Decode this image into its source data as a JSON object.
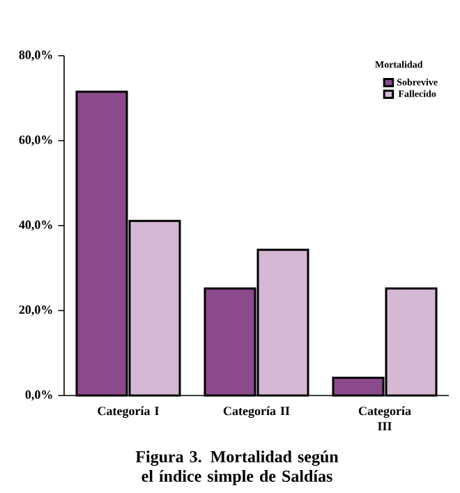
{
  "chart_data": {
    "type": "bar",
    "title": "Figura 3. Mortalidad según el índice simple de Saldías",
    "legend_title": "Mortalidad",
    "categories": [
      "Categoría I",
      "Categoría II",
      "Categoría III"
    ],
    "series": [
      {
        "name": "Sobrevive",
        "color": "#8b4a8c",
        "values": [
          71.5,
          25.2,
          4.2
        ]
      },
      {
        "name": "Fallecido",
        "color": "#d4b8d4",
        "values": [
          41.1,
          34.3,
          25.2
        ]
      }
    ],
    "ylim": [
      0,
      80
    ],
    "yticks": [
      {
        "value": 0,
        "label": "0,0%"
      },
      {
        "value": 20,
        "label": "20,0%"
      },
      {
        "value": 40,
        "label": "40,0%"
      },
      {
        "value": 60,
        "label": "60,0%"
      },
      {
        "value": 80,
        "label": "80,0%"
      }
    ],
    "grid": false,
    "legend": "top right"
  }
}
